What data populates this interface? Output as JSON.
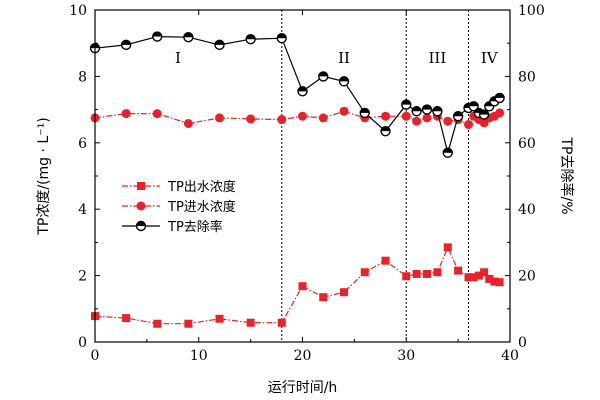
{
  "chart_data": {
    "type": "line",
    "xlabel": "运行时间/h",
    "ylabel_left": "TP浓度/(mg · L⁻¹)",
    "ylabel_right": "TP去除率/%",
    "xlim": [
      0,
      40
    ],
    "ylim_left": [
      0,
      10
    ],
    "ylim_right": [
      0,
      100
    ],
    "x_ticks": [
      "0",
      "10",
      "20",
      "30",
      "40"
    ],
    "y_left_ticks": [
      "0",
      "2",
      "4",
      "6",
      "8",
      "10"
    ],
    "y_right_ticks": [
      "0",
      "20",
      "40",
      "60",
      "80",
      "100"
    ],
    "phase_boundaries": [
      18,
      30,
      36
    ],
    "phases": [
      {
        "label": "I",
        "x": 8,
        "y": 8.4
      },
      {
        "label": "II",
        "x": 24,
        "y": 8.4
      },
      {
        "label": "III",
        "x": 33,
        "y": 8.4
      },
      {
        "label": "IV",
        "x": 38,
        "y": 8.4
      }
    ],
    "legend_position": "middle-left",
    "series": [
      {
        "name": "TP出水浓度",
        "axis": "left",
        "color": "#e8212a",
        "marker": "square",
        "line": "dash-dot",
        "points": [
          [
            0,
            0.78
          ],
          [
            3,
            0.72
          ],
          [
            6,
            0.55
          ],
          [
            9,
            0.55
          ],
          [
            12,
            0.7
          ],
          [
            15,
            0.58
          ],
          [
            18,
            0.58
          ],
          [
            20,
            1.68
          ],
          [
            22,
            1.35
          ],
          [
            24,
            1.5
          ],
          [
            26,
            2.1
          ],
          [
            28,
            2.45
          ],
          [
            30,
            1.98
          ],
          [
            31,
            2.05
          ],
          [
            32,
            2.05
          ],
          [
            33,
            2.1
          ],
          [
            34,
            2.85
          ],
          [
            35,
            2.15
          ],
          [
            36,
            1.95
          ],
          [
            36.5,
            1.95
          ],
          [
            37,
            2.0
          ],
          [
            37.5,
            2.1
          ],
          [
            38,
            1.9
          ],
          [
            38.5,
            1.82
          ],
          [
            39,
            1.8
          ]
        ]
      },
      {
        "name": "TP进水浓度",
        "axis": "left",
        "color": "#e8212a",
        "marker": "circle",
        "line": "dash-dot",
        "points": [
          [
            0,
            6.75
          ],
          [
            3,
            6.88
          ],
          [
            6,
            6.88
          ],
          [
            9,
            6.58
          ],
          [
            12,
            6.75
          ],
          [
            15,
            6.72
          ],
          [
            18,
            6.7
          ],
          [
            20,
            6.8
          ],
          [
            22,
            6.75
          ],
          [
            24,
            6.95
          ],
          [
            26,
            6.75
          ],
          [
            28,
            6.8
          ],
          [
            30,
            6.8
          ],
          [
            31,
            6.65
          ],
          [
            32,
            6.75
          ],
          [
            33,
            6.8
          ],
          [
            34,
            6.65
          ],
          [
            35,
            6.7
          ],
          [
            36,
            6.55
          ],
          [
            36.5,
            6.8
          ],
          [
            37,
            6.7
          ],
          [
            37.5,
            6.6
          ],
          [
            38,
            6.75
          ],
          [
            38.5,
            6.8
          ],
          [
            39,
            6.9
          ]
        ]
      },
      {
        "name": "TP去除率",
        "axis": "right",
        "color": "#000000",
        "marker": "half-circle",
        "line": "solid",
        "points": [
          [
            0,
            88.5
          ],
          [
            3,
            89.5
          ],
          [
            6,
            92
          ],
          [
            9,
            91.8
          ],
          [
            12,
            89.5
          ],
          [
            15,
            91.2
          ],
          [
            18,
            91.5
          ],
          [
            20,
            75.5
          ],
          [
            22,
            80
          ],
          [
            24,
            78.5
          ],
          [
            26,
            69
          ],
          [
            28,
            63.5
          ],
          [
            30,
            71.5
          ],
          [
            31,
            69.5
          ],
          [
            32,
            70
          ],
          [
            33,
            69.5
          ],
          [
            34,
            57
          ],
          [
            35,
            68
          ],
          [
            36,
            70.5
          ],
          [
            36.5,
            71
          ],
          [
            37,
            69
          ],
          [
            37.5,
            68.5
          ],
          [
            38,
            71
          ],
          [
            38.5,
            72.5
          ],
          [
            39,
            73.5
          ]
        ]
      }
    ]
  }
}
